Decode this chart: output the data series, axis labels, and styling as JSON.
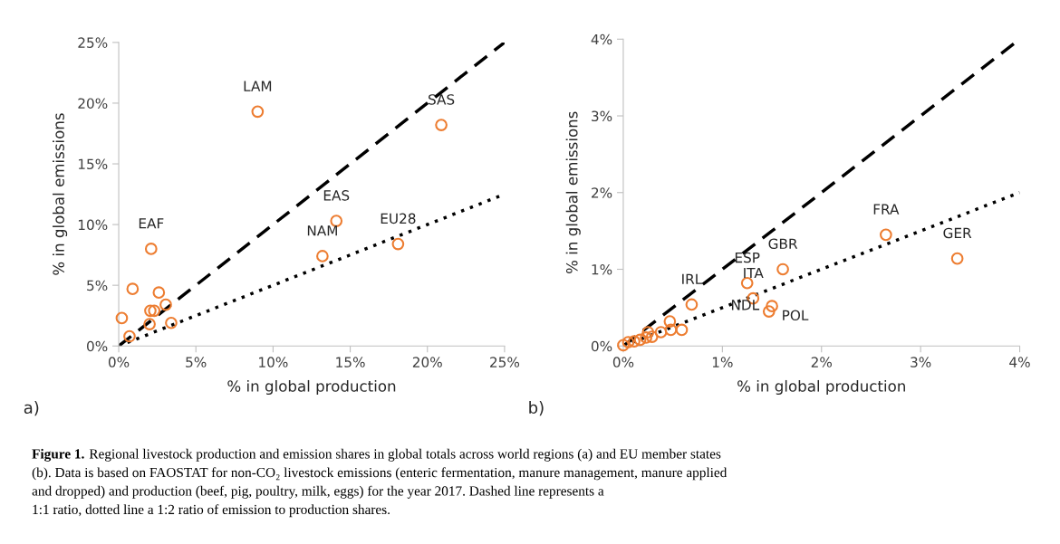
{
  "chart_data": [
    {
      "type": "scatter",
      "xlabel": "% in global production",
      "ylabel": "% in global emissions",
      "xlim": [
        0,
        25
      ],
      "ylim": [
        0,
        25
      ],
      "xticks": [
        {
          "value": 0,
          "label": "0%"
        },
        {
          "value": 5,
          "label": "5%"
        },
        {
          "value": 10,
          "label": "10%"
        },
        {
          "value": 15,
          "label": "15%"
        },
        {
          "value": 20,
          "label": "20%"
        },
        {
          "value": 25,
          "label": "25%"
        }
      ],
      "yticks": [
        {
          "value": 0,
          "label": "0%"
        },
        {
          "value": 5,
          "label": "5%"
        },
        {
          "value": 10,
          "label": "10%"
        },
        {
          "value": 15,
          "label": "15%"
        },
        {
          "value": 20,
          "label": "20%"
        },
        {
          "value": 25,
          "label": "25%"
        }
      ],
      "series": [
        {
          "marker": "circle",
          "color": "#ed7d31",
          "x": [
            9.0,
            20.9,
            14.1,
            18.1,
            13.2,
            2.1,
            0.9,
            0.2,
            0.7,
            2.0,
            2.05,
            2.3,
            2.6,
            3.05,
            3.4
          ],
          "values": [
            19.3,
            18.2,
            10.3,
            8.4,
            7.4,
            8.0,
            4.7,
            2.3,
            0.8,
            1.8,
            2.9,
            2.9,
            4.4,
            3.4,
            1.9
          ]
        },
        {
          "type": "line",
          "color": "#000000",
          "line_style": "dashed",
          "x": [
            0,
            25
          ],
          "values": [
            0,
            25
          ]
        },
        {
          "type": "line",
          "color": "#000000",
          "line_style": "dotted",
          "x": [
            0,
            25
          ],
          "values": [
            0,
            12.5
          ]
        }
      ],
      "annotations": [
        {
          "text": "LAM",
          "x": 9.0,
          "y": 19.3
        },
        {
          "text": "SAS",
          "x": 20.9,
          "y": 18.2
        },
        {
          "text": "EAS",
          "x": 14.1,
          "y": 10.3
        },
        {
          "text": "EU28",
          "x": 18.1,
          "y": 8.4
        },
        {
          "text": "NAM",
          "x": 13.2,
          "y": 7.4
        },
        {
          "text": "EAF",
          "x": 2.1,
          "y": 8.0
        },
        "a)",
        "Figure 1.",
        "Regional livestock production and emission shares in global totals across world regions (a) and EU member states\n(b). Data is based on FAOSTAT for non-CO₂ livestock emissions (enteric fermentation, manure management, manure applied\nand dropped) and production (beef, pig, poultry, milk, eggs) for the year 2017. Dashed line represents a\n1:1 ratio, dotted line a 1:2 ratio of emission to production shares."
      ]
    },
    {
      "type": "scatter",
      "xlabel": "% in global production",
      "ylabel": "% in global emissions",
      "xlim": [
        0,
        4
      ],
      "ylim": [
        0,
        4
      ],
      "xticks": [
        {
          "value": 0,
          "label": "0%"
        },
        {
          "value": 1,
          "label": "1%"
        },
        {
          "value": 2,
          "label": "2%"
        },
        {
          "value": 3,
          "label": "3%"
        },
        {
          "value": 4,
          "label": "4%"
        }
      ],
      "yticks": [
        {
          "value": 0,
          "label": "0%"
        },
        {
          "value": 1,
          "label": "1%"
        },
        {
          "value": 2,
          "label": "2%"
        },
        {
          "value": 3,
          "label": "3%"
        },
        {
          "value": 4,
          "label": "4%"
        }
      ],
      "series": [
        {
          "marker": "circle",
          "color": "#ed7d31",
          "x": [
            2.65,
            3.37,
            1.61,
            1.25,
            1.31,
            1.5,
            1.47,
            0.69,
            0.47,
            0.48,
            0.59,
            0.38,
            0.25,
            0.29,
            0.23,
            0.17,
            0.11,
            0.05,
            0.0
          ],
          "values": [
            1.45,
            1.14,
            1.0,
            0.82,
            0.62,
            0.52,
            0.45,
            0.54,
            0.32,
            0.21,
            0.21,
            0.18,
            0.18,
            0.12,
            0.11,
            0.08,
            0.06,
            0.05,
            0.01
          ]
        },
        {
          "type": "line",
          "color": "#000000",
          "line_style": "dashed",
          "x": [
            0,
            4
          ],
          "values": [
            0,
            4
          ]
        },
        {
          "type": "line",
          "color": "#000000",
          "line_style": "dotted",
          "x": [
            0,
            4
          ],
          "values": [
            0,
            2
          ]
        }
      ],
      "annotations": [
        {
          "text": "FRA",
          "x": 2.65,
          "y": 1.45
        },
        {
          "text": "GER",
          "x": 3.37,
          "y": 1.14
        },
        {
          "text": "GBR",
          "x": 1.61,
          "y": 1.0
        },
        {
          "text": "ESP",
          "x": 1.25,
          "y": 0.82
        },
        {
          "text": "IRL",
          "x": 0.69,
          "y": 0.54
        },
        {
          "text": "ITA",
          "x": 1.31,
          "y": 0.62
        },
        {
          "text": "NDL",
          "x": 1.5,
          "y": 0.52
        },
        {
          "text": "POL",
          "x": 1.47,
          "y": 0.45
        },
        "b)"
      ]
    }
  ]
}
